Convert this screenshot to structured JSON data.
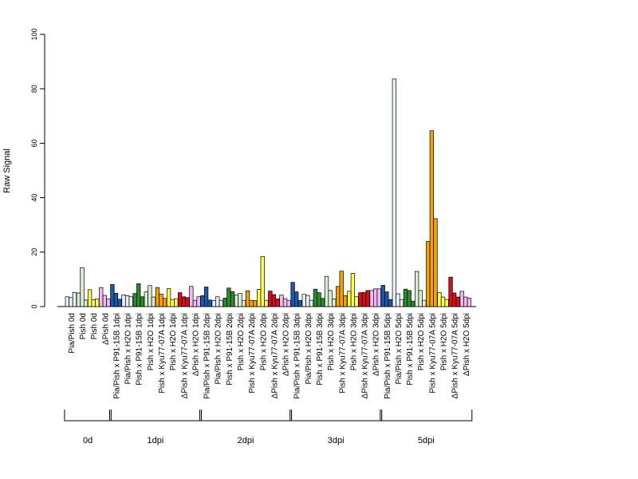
{
  "chart_data": {
    "type": "bar",
    "ylabel": "Raw Signal",
    "ylim": [
      0,
      100
    ],
    "yticks": [
      0,
      20,
      40,
      60,
      80,
      100
    ],
    "grid": false,
    "legend": "none",
    "groups": [
      {
        "label": "Pia/Pish 0d",
        "color": "#e6effa",
        "values": [
          3.6,
          3.3,
          5.2
        ]
      },
      {
        "label": "Pish 0d",
        "color": "#d8edd3",
        "values": [
          5.0,
          14.3,
          2.4
        ]
      },
      {
        "label": "Pish 0d",
        "color": "#ffff55",
        "values": [
          6.2,
          2.5,
          2.8
        ]
      },
      {
        "label": "ΔPish 0d",
        "color": "#f2b8f2",
        "values": [
          7.0,
          4.1,
          2.8
        ]
      },
      {
        "label": "Pia/Pish x P91-15B 1dpi",
        "color": "#1a5aa8",
        "values": [
          8.1,
          4.9,
          2.7
        ]
      },
      {
        "label": "Pia/Pish x H2O 1dpi",
        "color": "#e6effa",
        "values": [
          4.3,
          4.0,
          3.6
        ]
      },
      {
        "label": "Pish x P91-15B 1dpi",
        "color": "#2e8b2e",
        "values": [
          4.8,
          8.4,
          3.6
        ]
      },
      {
        "label": "Pish x H2O 1dpi",
        "color": "#d8edd3",
        "values": [
          5.4,
          7.7,
          3.5
        ]
      },
      {
        "label": "Pish x Kyu77-07A 1dpi",
        "color": "#f5a10a",
        "values": [
          7.0,
          4.6,
          3.0
        ]
      },
      {
        "label": "Pish x H2O 1dpi",
        "color": "#ffff55",
        "values": [
          6.6,
          2.6,
          2.9
        ]
      },
      {
        "label": "ΔPish x Kyu77-07A 1dpi",
        "color": "#d4101c",
        "values": [
          5.1,
          3.6,
          3.3
        ]
      },
      {
        "label": "ΔPish x H2O 1dpi",
        "color": "#f2b8f2",
        "values": [
          7.4,
          2.3,
          3.6
        ]
      },
      {
        "label": "Pia/Pish x P91-15B 2dpi",
        "color": "#1a5aa8",
        "values": [
          4.0,
          7.2,
          2.4
        ]
      },
      {
        "label": "Pia/Pish x H2O 2dpi",
        "color": "#e6effa",
        "values": [
          2.2,
          3.6,
          2.3
        ]
      },
      {
        "label": "Pish x P91-15B 2dpi",
        "color": "#2e8b2e",
        "values": [
          3.1,
          6.8,
          5.5
        ]
      },
      {
        "label": "Pish x H2O 2dpi",
        "color": "#d8edd3",
        "values": [
          4.2,
          4.8,
          2.3
        ]
      },
      {
        "label": "Pish x Kyu77-07A 2dpi",
        "color": "#f5a10a",
        "values": [
          5.8,
          2.3,
          2.2
        ]
      },
      {
        "label": "Pish x H2O 2dpi",
        "color": "#ffff55",
        "values": [
          6.3,
          18.4,
          2.3
        ]
      },
      {
        "label": "ΔPish x Kyu77-07A 2dpi",
        "color": "#d4101c",
        "values": [
          5.7,
          4.4,
          2.8
        ]
      },
      {
        "label": "ΔPish x H2O 2dpi",
        "color": "#f2b8f2",
        "values": [
          4.2,
          2.9,
          2.3
        ]
      },
      {
        "label": "Pia/Pish x P91-15B 3dpi",
        "color": "#1a5aa8",
        "values": [
          8.9,
          5.4,
          2.2
        ]
      },
      {
        "label": "Pia/Pish x H2O 3dpi",
        "color": "#e6effa",
        "values": [
          4.5,
          4.1,
          2.3
        ]
      },
      {
        "label": "Pish x P91-15B 3dpi",
        "color": "#2e8b2e",
        "values": [
          6.4,
          5.1,
          3.0
        ]
      },
      {
        "label": "Pish x H2O 3dpi",
        "color": "#d8edd3",
        "values": [
          11.1,
          5.9,
          2.8
        ]
      },
      {
        "label": "Pish x Kyu77-07A 3dpi",
        "color": "#f5a10a",
        "values": [
          7.4,
          13.0,
          4.0
        ]
      },
      {
        "label": "Pish x H2O 3dpi",
        "color": "#ffff55",
        "values": [
          5.6,
          12.2,
          3.6
        ]
      },
      {
        "label": "ΔPish x Kyu77-07A 3dpi",
        "color": "#d4101c",
        "values": [
          5.1,
          5.2,
          5.9
        ]
      },
      {
        "label": "ΔPish x H2O 3dpi",
        "color": "#f2b8f2",
        "values": [
          5.9,
          6.5,
          6.5
        ]
      },
      {
        "label": "Pia/Pish x P91-15B 5dpi",
        "color": "#1a5aa8",
        "values": [
          7.8,
          5.4,
          2.6
        ]
      },
      {
        "label": "Pia/Pish x H2O 5dpi",
        "color": "#e6effa",
        "values": [
          83.6,
          4.7,
          2.6
        ]
      },
      {
        "label": "Pish x P91-15B 5dpi",
        "color": "#2e8b2e",
        "values": [
          6.4,
          5.9,
          2.0
        ]
      },
      {
        "label": "Pish x H2O 5dpi",
        "color": "#d8edd3",
        "values": [
          12.9,
          5.9,
          2.3
        ]
      },
      {
        "label": "Pish x Kyu77-07A 5dpi",
        "color": "#f5a10a",
        "values": [
          23.9,
          64.6,
          32.3
        ]
      },
      {
        "label": "Pish x H2O 5dpi",
        "color": "#ffff55",
        "values": [
          5.1,
          3.5,
          2.6
        ]
      },
      {
        "label": "ΔPish x Kyu77-07A 5dpi",
        "color": "#d4101c",
        "values": [
          10.8,
          5.0,
          3.5
        ]
      },
      {
        "label": "ΔPish x H2O 5dpi",
        "color": "#f2b8f2",
        "values": [
          5.6,
          3.5,
          3.1
        ]
      }
    ],
    "timepoints": [
      {
        "label": "0d",
        "first": 0,
        "last": 3
      },
      {
        "label": "1dpi",
        "first": 4,
        "last": 11
      },
      {
        "label": "2dpi",
        "first": 12,
        "last": 19
      },
      {
        "label": "3dpi",
        "first": 20,
        "last": 27
      },
      {
        "label": "5dpi",
        "first": 28,
        "last": 35
      }
    ]
  }
}
